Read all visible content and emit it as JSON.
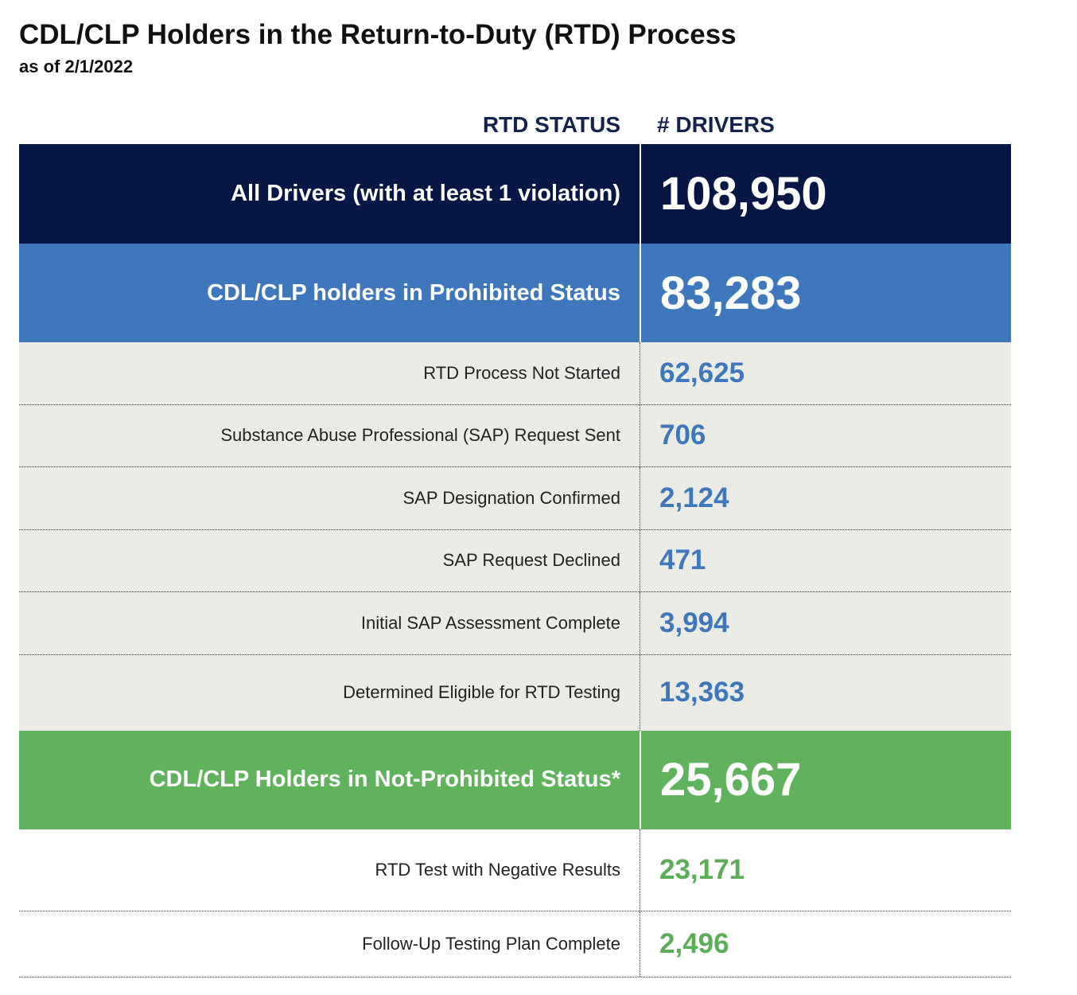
{
  "header": {
    "title": "CDL/CLP Holders in the Return-to-Duty (RTD) Process",
    "subtitle": "as of 2/1/2022"
  },
  "chart_data": {
    "type": "table",
    "columns": [
      "RTD STATUS",
      "# DRIVERS"
    ],
    "rows": [
      {
        "status": "All Drivers (with at least 1 violation)",
        "drivers": "108,950",
        "level": "total"
      },
      {
        "status": "CDL/CLP holders in Prohibited Status",
        "drivers": "83,283",
        "level": "group"
      },
      {
        "status": "RTD Process Not Started",
        "drivers": "62,625",
        "level": "detail"
      },
      {
        "status": "Substance Abuse Professional (SAP) Request Sent",
        "drivers": "706",
        "level": "detail"
      },
      {
        "status": "SAP Designation Confirmed",
        "drivers": "2,124",
        "level": "detail"
      },
      {
        "status": "SAP Request Declined",
        "drivers": "471",
        "level": "detail"
      },
      {
        "status": "Initial SAP Assessment Complete",
        "drivers": "3,994",
        "level": "detail"
      },
      {
        "status": "Determined Eligible for RTD Testing",
        "drivers": "13,363",
        "level": "detail"
      },
      {
        "status": "CDL/CLP Holders in Not-Prohibited Status*",
        "drivers": "25,667",
        "level": "group"
      },
      {
        "status": "RTD Test with Negative Results",
        "drivers": "23,171",
        "level": "detail"
      },
      {
        "status": "Follow-Up Testing Plan Complete",
        "drivers": "2,496",
        "level": "detail"
      }
    ]
  },
  "colors": {
    "navy": "#061645",
    "blue": "#3e77bc",
    "green": "#60b35c",
    "grey_row": "#ebebe6",
    "header_text": "#13234d"
  }
}
